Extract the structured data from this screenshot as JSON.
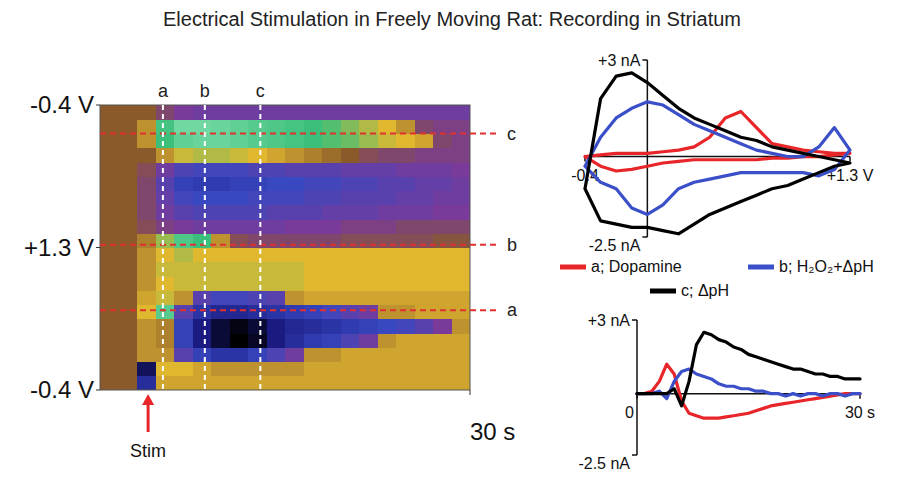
{
  "chart_data": [
    {
      "type": "heatmap",
      "title": "Electrical Stimulation in Freely Moving Rat: Recording in Striatum",
      "xlim": [
        0,
        30
      ],
      "xticks": [
        {
          "value": 30,
          "label": "30 s"
        }
      ],
      "ylim": [
        0,
        100
      ],
      "yticks": [
        {
          "value": 0,
          "label": "-0.4 V"
        },
        {
          "value": 50,
          "label": "+1.3 V"
        },
        {
          "value": 100,
          "label": "-0.4 V"
        }
      ],
      "zlim": [
        -2.5,
        2.5
      ],
      "x_edges": [
        0,
        1.5,
        3,
        4.5,
        6,
        7.5,
        9,
        10.5,
        12,
        13.5,
        15,
        16.5,
        18,
        19.5,
        21,
        22.5,
        24,
        25.5,
        27,
        28.5,
        30
      ],
      "y_edges": [
        0,
        5,
        10,
        15,
        20,
        25,
        30,
        35,
        40,
        45,
        50,
        55,
        60,
        65,
        70,
        75,
        80,
        85,
        90,
        95,
        100
      ],
      "cells": [
        [
          0,
          0,
          -1.5,
          0.4,
          0.4,
          0.4,
          0.4,
          0.4,
          0.4,
          0.4,
          0.4,
          0.4,
          0.4,
          0.4,
          0.4,
          0.4,
          0.4,
          0.4,
          0.4,
          0.4
        ],
        [
          0,
          0,
          -2.0,
          0.5,
          0.5,
          0.4,
          0.3,
          0.3,
          0.3,
          0.3,
          0.3,
          0.4,
          0.4,
          0.4,
          0.4,
          0.4,
          0.4,
          0.4,
          0.4,
          0.4
        ],
        [
          0,
          0,
          0.3,
          0.3,
          -0.8,
          -1.2,
          -1.4,
          -1.4,
          -1.2,
          -0.9,
          -0.6,
          0.3,
          0.3,
          0.4,
          0.4,
          0.4,
          0.4,
          0.4,
          0.4,
          0.4
        ],
        [
          0,
          0,
          0.3,
          0.2,
          -1.2,
          -1.8,
          -2.2,
          -2.5,
          -2.3,
          -1.8,
          -1.5,
          -1.3,
          -1.2,
          -0.9,
          -0.6,
          0.3,
          0.4,
          0.4,
          0.4,
          0.4
        ],
        [
          0,
          0,
          0.3,
          0.2,
          -1.2,
          -1.8,
          -2.2,
          -2.4,
          -2.2,
          -1.8,
          -1.6,
          -1.5,
          -1.4,
          -1.3,
          -1.2,
          -1.1,
          -1.0,
          -0.8,
          -0.5,
          0.3
        ],
        [
          0,
          0,
          0.5,
          1.5,
          -0.8,
          -1.4,
          -1.6,
          -1.6,
          -1.5,
          -1.4,
          -1.3,
          -1.2,
          -1.0,
          -0.8,
          -0.6,
          0.3,
          0.3,
          0.4,
          0.4,
          0.4
        ],
        [
          0,
          0,
          0.4,
          0.6,
          0.3,
          -0.8,
          -1.0,
          -1.0,
          -0.9,
          -0.8,
          0.3,
          0.4,
          0.4,
          0.4,
          0.4,
          0.4,
          0.4,
          0.4,
          0.4,
          0.4
        ],
        [
          0,
          0,
          0.3,
          0.5,
          0.6,
          0.6,
          0.6,
          0.6,
          0.6,
          0.6,
          0.6,
          0.5,
          0.5,
          0.5,
          0.5,
          0.5,
          0.5,
          0.5,
          0.5,
          0.5
        ],
        [
          0,
          0,
          0.3,
          0.6,
          0.6,
          0.6,
          0.6,
          0.6,
          0.6,
          0.6,
          0.6,
          0.5,
          0.5,
          0.5,
          0.5,
          0.5,
          0.5,
          0.5,
          0.5,
          0.5
        ],
        [
          0,
          0,
          0.3,
          0.5,
          0.7,
          0.5,
          0.5,
          0.5,
          0.5,
          0.5,
          0.5,
          0.5,
          0.5,
          0.5,
          0.5,
          0.5,
          0.5,
          0.5,
          0.5,
          0.5
        ],
        [
          0,
          0,
          0.2,
          0.8,
          1.4,
          1.2,
          0.3,
          -0.2,
          -0.3,
          -0.3,
          -0.3,
          -0.3,
          -0.3,
          -0.2,
          -0.2,
          -0.2,
          -0.2,
          -0.2,
          -0.1,
          -0.1
        ],
        [
          0,
          0,
          -0.2,
          -0.4,
          -0.5,
          -0.6,
          -0.6,
          -0.6,
          -0.6,
          -0.6,
          -0.5,
          -0.5,
          -0.5,
          -0.4,
          -0.4,
          -0.4,
          -0.3,
          -0.3,
          -0.3,
          -0.3
        ],
        [
          0,
          0,
          -0.3,
          -0.6,
          -0.8,
          -0.9,
          -0.9,
          -0.9,
          -0.9,
          -0.8,
          -0.8,
          -0.8,
          -0.7,
          -0.7,
          -0.7,
          -0.6,
          -0.6,
          -0.6,
          -0.5,
          -0.5
        ],
        [
          0,
          0,
          -0.3,
          -0.7,
          -1.0,
          -1.1,
          -1.1,
          -1.1,
          -1.0,
          -1.0,
          -1.0,
          -0.9,
          -0.9,
          -0.8,
          -0.8,
          -0.8,
          -0.7,
          -0.7,
          -0.6,
          -0.6
        ],
        [
          0,
          0,
          -0.3,
          -0.8,
          -1.2,
          -1.3,
          -1.3,
          -1.2,
          -1.2,
          -1.1,
          -1.1,
          -1.0,
          -1.0,
          -0.9,
          -0.9,
          -0.8,
          -0.8,
          -0.7,
          -0.7,
          -0.6
        ],
        [
          0,
          0,
          -0.2,
          -0.6,
          -0.9,
          -1.0,
          -1.0,
          -1.0,
          -0.9,
          -0.9,
          -0.8,
          -0.8,
          -0.8,
          -0.7,
          -0.7,
          -0.7,
          -0.6,
          -0.6,
          -0.6,
          -0.5
        ],
        [
          0,
          0,
          0,
          0.3,
          0.6,
          0.7,
          0.7,
          0.6,
          0.5,
          0.4,
          0.3,
          0.2,
          0.1,
          0,
          -0.2,
          -0.3,
          -0.3,
          -0.4,
          -0.4,
          -0.4
        ],
        [
          0,
          0,
          0.3,
          1.2,
          1.6,
          1.7,
          1.7,
          1.6,
          1.5,
          1.4,
          1.3,
          1.2,
          1.1,
          1.0,
          0.8,
          0.6,
          0.5,
          0.4,
          -0.3,
          -0.4
        ],
        [
          0,
          0,
          0.3,
          1.3,
          1.8,
          1.8,
          1.7,
          1.6,
          1.5,
          1.4,
          1.3,
          1.2,
          1.1,
          0.9,
          0.7,
          0.5,
          0.3,
          -0.3,
          -0.4,
          -0.4
        ],
        [
          0,
          0,
          0,
          -0.3,
          -0.5,
          -0.6,
          -0.6,
          -0.6,
          -0.6,
          -0.6,
          -0.6,
          -0.6,
          -0.6,
          -0.6,
          -0.6,
          -0.6,
          -0.6,
          -0.6,
          -0.6,
          -0.6
        ]
      ],
      "markers": [
        {
          "label": "a",
          "x": 5.1
        },
        {
          "label": "b",
          "x": 8.5
        },
        {
          "label": "c",
          "x": 13
        }
      ],
      "h_markers": [
        {
          "label": "c",
          "y": 90
        },
        {
          "label": "b",
          "y": 51
        },
        {
          "label": "a",
          "y": 28
        }
      ],
      "annotations": [
        {
          "text": "Stim",
          "x": 3.9
        }
      ]
    },
    {
      "type": "line",
      "xlim": [
        -0.4,
        1.3
      ],
      "xticks": [
        {
          "value": -0.4,
          "label": "-0.4"
        },
        {
          "value": 1.3,
          "label": "+1.3 V"
        }
      ],
      "ylim": [
        -2.5,
        3
      ],
      "yticks": [
        {
          "value": 3,
          "label": "+3 nA"
        },
        {
          "value": -2.5,
          "label": "-2.5 nA"
        }
      ],
      "legend": "bottom",
      "x": [
        -0.4,
        -0.3,
        -0.2,
        -0.1,
        0,
        0.1,
        0.2,
        0.3,
        0.4,
        0.5,
        0.6,
        0.7,
        0.8,
        0.9,
        1.0,
        1.1,
        1.2,
        1.3,
        1.2,
        1.1,
        1.0,
        0.9,
        0.8,
        0.7,
        0.6,
        0.5,
        0.4,
        0.3,
        0.2,
        0.1,
        0,
        -0.1,
        -0.2,
        -0.3,
        -0.4
      ],
      "series": [
        {
          "name": "a; Dopamine",
          "color": "#e8262a",
          "values": [
            0,
            0.05,
            0.1,
            0.1,
            0.1,
            0.15,
            0.2,
            0.3,
            0.6,
            1.2,
            1.4,
            0.9,
            0.4,
            0.3,
            0.2,
            0.15,
            0.1,
            0.1,
            0.05,
            0,
            0,
            -0.05,
            -0.05,
            -0.1,
            -0.1,
            -0.1,
            -0.1,
            -0.1,
            -0.15,
            -0.2,
            -0.3,
            -0.4,
            -0.45,
            -0.3,
            0
          ]
        },
        {
          "name": "b; H₂O₂+ΔpH",
          "color": "#3a4fc8",
          "values": [
            -0.3,
            0.6,
            1.2,
            1.5,
            1.7,
            1.6,
            1.3,
            1.0,
            0.8,
            0.6,
            0.4,
            0.2,
            0.1,
            0,
            0,
            0.3,
            0.9,
            0.2,
            -0.4,
            -0.6,
            -0.5,
            -0.5,
            -0.5,
            -0.5,
            -0.5,
            -0.6,
            -0.7,
            -0.8,
            -1.0,
            -1.5,
            -1.8,
            -1.6,
            -1.0,
            -0.8,
            -0.3
          ]
        },
        {
          "name": "c; ΔpH",
          "color": "#000000",
          "values": [
            -1.0,
            1.8,
            2.5,
            2.6,
            2.3,
            1.9,
            1.5,
            1.2,
            1.0,
            0.8,
            0.6,
            0.5,
            0.3,
            0.2,
            0.1,
            0,
            -0.1,
            -0.2,
            -0.3,
            -0.5,
            -0.7,
            -0.9,
            -1.0,
            -1.2,
            -1.4,
            -1.6,
            -1.8,
            -2.1,
            -2.4,
            -2.3,
            -2.2,
            -2.2,
            -2.1,
            -2.0,
            -1.0
          ]
        }
      ]
    },
    {
      "type": "line",
      "xlim": [
        0,
        30
      ],
      "xticks": [
        0,
        {
          "value": 30,
          "label": "30 s"
        }
      ],
      "ylim": [
        -2.5,
        3
      ],
      "yticks": [
        {
          "value": 3,
          "label": "+3 nA"
        },
        {
          "value": -2.5,
          "label": "-2.5 nA"
        }
      ],
      "x": [
        0,
        1,
        2,
        3,
        4,
        5,
        6,
        7,
        8,
        9,
        10,
        11,
        12,
        13,
        14,
        15,
        16,
        17,
        18,
        19,
        20,
        21,
        22,
        23,
        24,
        25,
        26,
        27,
        28,
        29,
        30
      ],
      "series": [
        {
          "color": "#e8262a",
          "values": [
            0,
            0,
            0.1,
            0.5,
            1.2,
            0.8,
            -0.3,
            -0.8,
            -0.9,
            -1.0,
            -1.0,
            -1.0,
            -0.95,
            -0.9,
            -0.85,
            -0.8,
            -0.7,
            -0.6,
            -0.5,
            -0.45,
            -0.4,
            -0.35,
            -0.3,
            -0.25,
            -0.2,
            -0.15,
            -0.1,
            -0.05,
            0,
            0,
            0
          ]
        },
        {
          "color": "#3a4fc8",
          "values": [
            0,
            0,
            0,
            0.1,
            -0.2,
            0.5,
            0.9,
            1.0,
            0.8,
            0.7,
            0.6,
            0.4,
            0.3,
            0.3,
            0.2,
            0.2,
            0.1,
            0.1,
            0,
            0,
            -0.1,
            0,
            -0.1,
            0,
            0,
            -0.1,
            0,
            0,
            -0.1,
            0,
            0
          ]
        },
        {
          "color": "#000000",
          "values": [
            0,
            0,
            0,
            0,
            0,
            0.2,
            -0.5,
            0.5,
            2.0,
            2.5,
            2.4,
            2.2,
            2.1,
            1.9,
            1.8,
            1.6,
            1.5,
            1.4,
            1.3,
            1.2,
            1.1,
            1.0,
            1.0,
            0.9,
            0.8,
            0.8,
            0.7,
            0.7,
            0.6,
            0.6,
            0.6
          ]
        }
      ]
    }
  ]
}
